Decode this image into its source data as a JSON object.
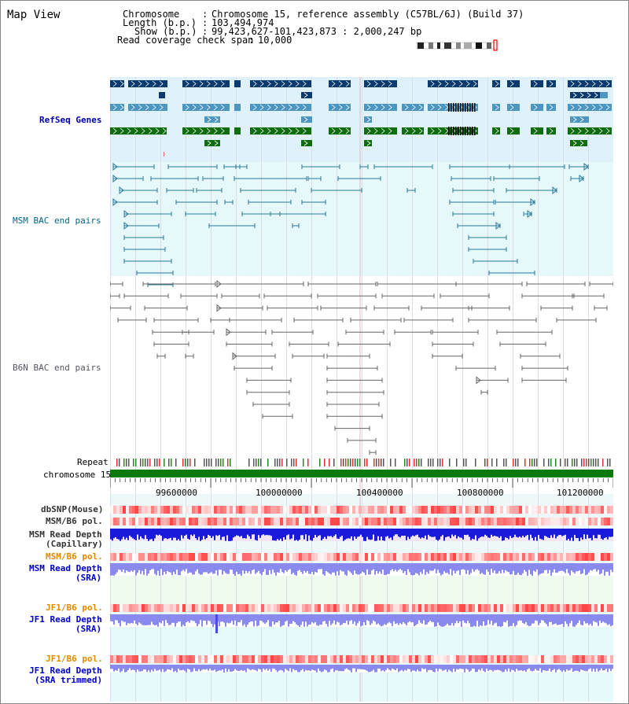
{
  "view": {
    "title": "Map View"
  },
  "header": {
    "chromosome_label": "Chromosome",
    "chromosome_value": "Chromosome 15, reference assembly (C57BL/6J) (Build 37)",
    "length_label": "Length (b.p.)",
    "length_value": "103,494,974",
    "show_label": "Show (b.p.)",
    "show_value": "99,423,627-101,423,873 : 2,000,247 bp",
    "coverage_label": "Read coverage check span",
    "coverage_value": "10,000"
  },
  "tracks": {
    "refseq": "RefSeq Genes",
    "msm_bac": "MSM BAC end pairs",
    "b6n_bac": "B6N BAC end pairs",
    "repeat": "Repeat",
    "chromosome": "chromosome 15",
    "dbsnp": "dbSNP(Mouse)",
    "msm_b6_pol_1": "MSM/B6 pol.",
    "msm_depth_cap_1": "MSM Read Depth",
    "msm_depth_cap_2": "(Capillary)",
    "msm_b6_pol_2": "MSM/B6 pol.",
    "msm_depth_sra_1": "MSM Read Depth",
    "msm_depth_sra_2": "(SRA)",
    "jf1_b6_pol_1": "JF1/B6 pol.",
    "jf1_depth_sra_1": "JF1 Read Depth",
    "jf1_depth_sra_2": "(SRA)",
    "jf1_b6_pol_2": "JF1/B6 pol.",
    "jf1_depth_trim_1": "JF1 Read Depth",
    "jf1_depth_trim_2": "(SRA trimmed)"
  },
  "axis": {
    "ticks": [
      "99600000",
      "100000000",
      "100400000",
      "100800000",
      "101200000"
    ]
  },
  "colors": {
    "refseq_bg": "#dff2fb",
    "msm_bac_bg": "#e6f8fa",
    "gene_dark": "#0b3a6e",
    "gene_mid": "#4c96c0",
    "gene_green": "#0e6e0e",
    "bac_teal": "#2a7a9a",
    "bac_gray": "#666666",
    "chromosome_green": "#0a7a0a",
    "depth_capillary": "#1a1adc",
    "depth_sra": "#8a8aee",
    "pol_red": "#ff6f6f"
  }
}
